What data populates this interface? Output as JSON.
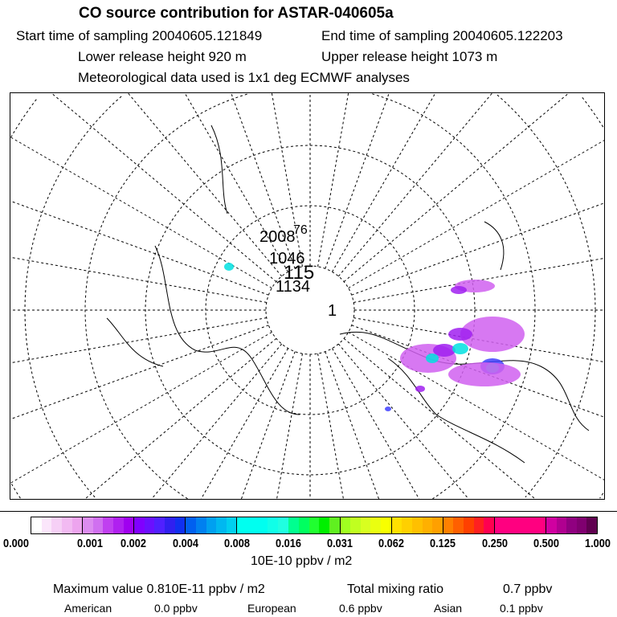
{
  "header": {
    "title": "CO  source contribution for ASTAR-040605a",
    "start": "Start time of sampling 20040605.121849",
    "end": "End time of sampling 20040605.122203",
    "lower": "Lower release height  920 m",
    "upper": "Upper release height 1073 m",
    "met": "Meteorological data used is 1x1 deg ECMWF analyses"
  },
  "map": {
    "track_labels": [
      "2008",
      "76",
      "1046",
      "115",
      "1134",
      "1"
    ],
    "plume_colors": [
      "#d060f0",
      "#a020f0",
      "#4040ff",
      "#00e0e0"
    ]
  },
  "chart_data": {
    "type": "heatmap",
    "title": "CO  source contribution for ASTAR-040605a",
    "colorbar": {
      "ticks": [
        "0.000",
        "0.001",
        "0.002",
        "0.004",
        "0.008",
        "0.016",
        "0.031",
        "0.062",
        "0.125",
        "0.250",
        "0.500",
        "1.000"
      ],
      "label": "10E-10 ppbv / m2",
      "segment_colors": [
        [
          "#ffffff",
          "#fbe6fb",
          "#f6d0f6",
          "#f2baf2",
          "#eda4ee"
        ],
        [
          "#dc8cf0",
          "#d070f0",
          "#c040f0",
          "#b020f0",
          "#a000f0"
        ],
        [
          "#8000ff",
          "#6a10ff",
          "#5020ff",
          "#3020f0",
          "#1030f0"
        ],
        [
          "#0060f0",
          "#0080f0",
          "#00a0f0",
          "#00b8f0",
          "#00d0f0"
        ],
        [
          "#00fff0",
          "#00fff0",
          "#00fff0",
          "#10ffe8",
          "#20ffe0"
        ],
        [
          "#00ff90",
          "#00ff60",
          "#20ff30",
          "#00f000",
          "#60f020"
        ],
        [
          "#a0ff20",
          "#c0ff20",
          "#d8ff20",
          "#eaff10",
          "#f8ff00"
        ],
        [
          "#ffe000",
          "#ffd000",
          "#ffc000",
          "#ffb000",
          "#ffa000"
        ],
        [
          "#ff8000",
          "#ff6000",
          "#ff4000",
          "#ff2020",
          "#ff0050"
        ],
        [
          "#ff0080",
          "#ff0080",
          "#ff0080",
          "#ff0080",
          "#ff0080"
        ],
        [
          "#d000a0",
          "#b00090",
          "#900080",
          "#800070",
          "#600050"
        ]
      ]
    }
  },
  "footer": {
    "max_label": "Maximum value  0.810E-11 ppbv / m2",
    "total_label": "Total mixing ratio",
    "total_value": "0.7 ppbv",
    "american_label": "American",
    "american_value": "0.0 ppbv",
    "european_label": "European",
    "european_value": "0.6 ppbv",
    "asian_label": "Asian",
    "asian_value": "0.1 ppbv"
  }
}
